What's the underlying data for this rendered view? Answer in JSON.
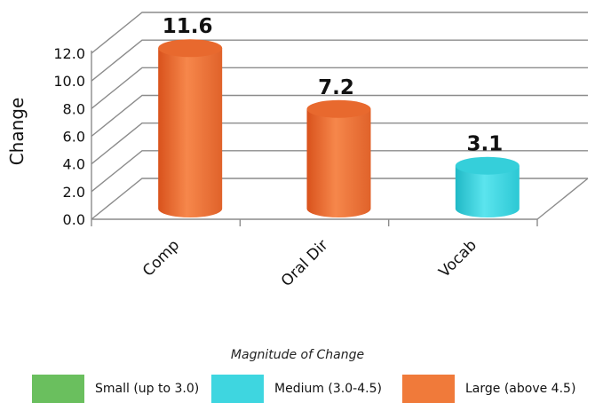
{
  "chart_data": {
    "type": "bar",
    "categories": [
      "Comp",
      "Oral Dir",
      "Vocab"
    ],
    "values": [
      11.6,
      7.2,
      3.1
    ],
    "bar_magnitude": [
      "Large (above 4.5)",
      "Large (above 4.5)",
      "Medium (3.0-4.5)"
    ],
    "ylabel": "Change",
    "ylim": [
      0,
      12
    ],
    "yticks": [
      "0.0",
      "2.0",
      "4.0",
      "6.0",
      "8.0",
      "10.0",
      "12.0"
    ],
    "data_labels": [
      "11.6",
      "7.2",
      "3.1"
    ],
    "grid": true,
    "style": "3d-cylinder",
    "legend": {
      "title": "Magnitude of Change",
      "placement": "bottom",
      "items": [
        {
          "label": "Small (up to 3.0)",
          "color": "#6abf5e"
        },
        {
          "label": "Medium (3.0-4.5)",
          "color": "#3ed6e0"
        },
        {
          "label": "Large (above 4.5)",
          "color": "#f07a3a"
        }
      ]
    }
  }
}
